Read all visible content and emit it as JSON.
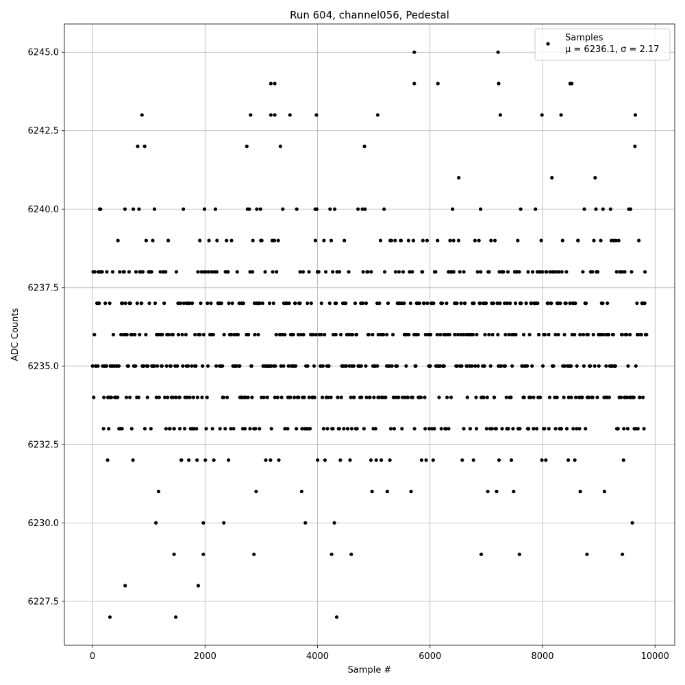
{
  "chart_data": {
    "type": "scatter",
    "title": "Run 604, channel056, Pedestal",
    "xlabel": "Sample #",
    "ylabel": "ADC Counts",
    "xlim": [
      -500,
      10350
    ],
    "ylim": [
      6226.1,
      6245.9
    ],
    "xticks": [
      0,
      2000,
      4000,
      6000,
      8000,
      10000
    ],
    "xtick_labels": [
      "0",
      "2000",
      "4000",
      "6000",
      "8000",
      "10000"
    ],
    "yticks": [
      6227.5,
      6230.0,
      6232.5,
      6235.0,
      6237.5,
      6240.0,
      6242.5,
      6245.0
    ],
    "ytick_labels": [
      "6227.5",
      "6230.0",
      "6232.5",
      "6235.0",
      "6237.5",
      "6240.0",
      "6242.5",
      "6245.0"
    ],
    "grid": true,
    "legend_position": "top-right",
    "marker_color": "#000000",
    "series": [
      {
        "name": "Samples",
        "x_range": [
          0,
          9840
        ],
        "x_step": 10,
        "level_weights": {
          "6227": 0.0004,
          "6228": 0.0003,
          "6229": 0.001,
          "6230": 0.003,
          "6231": 0.012,
          "6232": 0.03,
          "6233": 0.1,
          "6234": 0.15,
          "6235": 0.17,
          "6236": 0.18,
          "6237": 0.16,
          "6238": 0.11,
          "6239": 0.05,
          "6240": 0.03,
          "6241": 0.012,
          "6242": 0.004,
          "6243": 0.001,
          "6244": 0.0004,
          "6245": 0.0002
        },
        "outliers": [
          {
            "x": 310,
            "y": 6227
          },
          {
            "x": 1480,
            "y": 6227
          },
          {
            "x": 4340,
            "y": 6227
          },
          {
            "x": 580,
            "y": 6228
          },
          {
            "x": 1880,
            "y": 6228
          },
          {
            "x": 1450,
            "y": 6229
          },
          {
            "x": 1970,
            "y": 6229
          },
          {
            "x": 2870,
            "y": 6229
          },
          {
            "x": 4250,
            "y": 6229
          },
          {
            "x": 4600,
            "y": 6229
          },
          {
            "x": 6910,
            "y": 6229
          },
          {
            "x": 7590,
            "y": 6229
          },
          {
            "x": 8790,
            "y": 6229
          },
          {
            "x": 9420,
            "y": 6229
          },
          {
            "x": 880,
            "y": 6243
          },
          {
            "x": 2810,
            "y": 6243
          },
          {
            "x": 3170,
            "y": 6243
          },
          {
            "x": 3240,
            "y": 6243
          },
          {
            "x": 3510,
            "y": 6243
          },
          {
            "x": 3980,
            "y": 6243
          },
          {
            "x": 5070,
            "y": 6243
          },
          {
            "x": 7250,
            "y": 6243
          },
          {
            "x": 7990,
            "y": 6243
          },
          {
            "x": 8330,
            "y": 6243
          },
          {
            "x": 9650,
            "y": 6243
          },
          {
            "x": 3170,
            "y": 6244
          },
          {
            "x": 3240,
            "y": 6244
          },
          {
            "x": 5720,
            "y": 6244
          },
          {
            "x": 6140,
            "y": 6244
          },
          {
            "x": 7220,
            "y": 6244
          },
          {
            "x": 8490,
            "y": 6244
          },
          {
            "x": 8520,
            "y": 6244
          },
          {
            "x": 5720,
            "y": 6245
          },
          {
            "x": 7210,
            "y": 6245
          }
        ]
      }
    ],
    "legend": {
      "entries": [
        "Samples",
        "μ = 6236.1, σ = 2.17"
      ]
    }
  }
}
